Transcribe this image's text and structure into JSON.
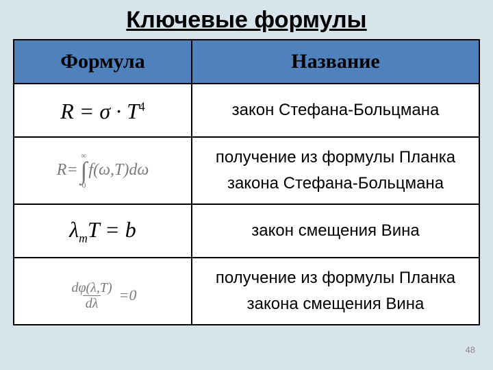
{
  "title": "Ключевые формулы",
  "headers": {
    "formula": "Формула",
    "name": "Название"
  },
  "rows": [
    {
      "formula_html": "R = σ · T<span class='sup'>4</span>",
      "name_lines": [
        "закон Стефана-Больцмана"
      ]
    },
    {
      "formula_html": "<span class='int-wrap gray'><span style='margin-right:2px;'>R=</span><span class='int-sym'><span class='lim'>∞</span><span class='sym'>∫</span><span class='lim'>0</span></span><span>f(ω,T)dω</span></span>",
      "name_lines": [
        "получение из формулы Планка",
        "закона Стефана-Больцмана"
      ]
    },
    {
      "formula_html": "λ<span class='sub'>m</span>T = b",
      "name_lines": [
        "закон смещения Вина"
      ]
    },
    {
      "formula_html": "<span class='gray' style='display:inline-flex;align-items:center;font-size:22px;'><span class='frac'><span class='num'>dφ(λ,T)</span><span class='den'>dλ</span></span><span style='margin-left:6px;'>=0</span></span>",
      "name_lines": [
        "получение из формулы Планка",
        "закона смещения Вина"
      ]
    }
  ],
  "page_number": "48",
  "colors": {
    "background": "#d8e4ec",
    "header_bg": "#4f81bd",
    "border": "#000000",
    "text": "#000000",
    "formula_gray": "#7a7a7a"
  }
}
